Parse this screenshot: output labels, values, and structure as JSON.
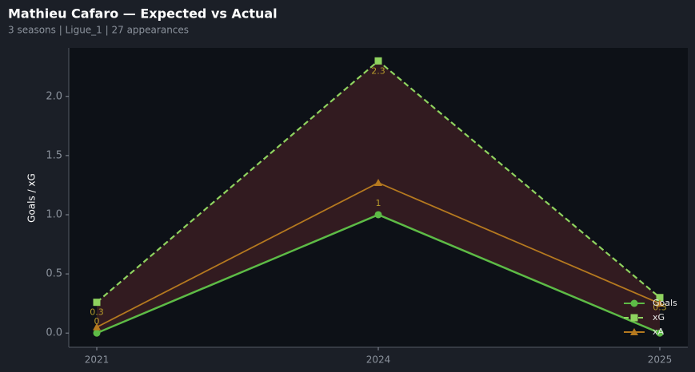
{
  "chart_data": {
    "type": "line",
    "title": "Mathieu Cafaro — Expected vs Actual",
    "subtitle": "3 seasons | Ligue_1 | 27 appearances",
    "y_label": "Goals / xG",
    "categories": [
      "2021",
      "2024",
      "2025"
    ],
    "series": [
      {
        "name": "Goals",
        "color": "#5dbb46",
        "marker": "circle",
        "dash": false,
        "values": [
          0,
          1,
          0
        ]
      },
      {
        "name": "xG",
        "color": "#8fd35f",
        "marker": "square",
        "dash": true,
        "values": [
          0.26,
          2.3,
          0.3
        ],
        "value_labels": [
          "0.3",
          "2.3",
          "0.3"
        ]
      },
      {
        "name": "xA",
        "color": "#b5791f",
        "marker": "triangle",
        "dash": false,
        "values": [
          0.05,
          1.27,
          0.25
        ]
      }
    ],
    "ylim": [
      -0.12,
      2.41
    ],
    "yticks": [
      {
        "value": 0,
        "label": "0.0"
      },
      0.5,
      {
        "value": 1,
        "label": "1.0"
      },
      1.5,
      {
        "value": 2,
        "label": "2.0"
      }
    ],
    "legend": "lower right",
    "fill_between": [
      "Goals",
      "xG"
    ]
  }
}
